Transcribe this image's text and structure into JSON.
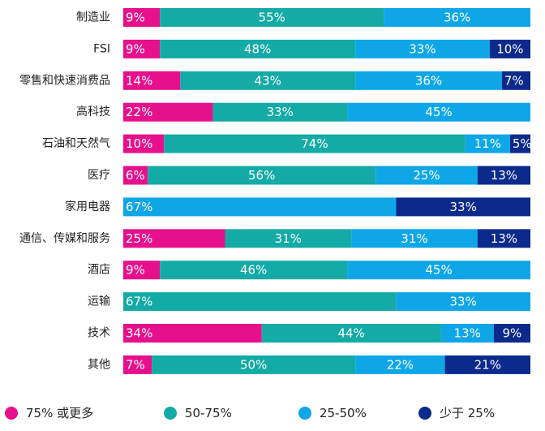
{
  "chart_data": {
    "type": "bar",
    "orientation": "horizontal",
    "stacked": true,
    "percent": true,
    "categories": [
      "制造业",
      "FSI",
      "零售和快速消费品",
      "高科技",
      "石油和天然气",
      "医疗",
      "家用电器",
      "通信、传媒和服务",
      "酒店",
      "运输",
      "技术",
      "其他"
    ],
    "series": [
      {
        "name": "75% 或更多",
        "color": "#e6108c",
        "values": [
          9,
          9,
          14,
          22,
          10,
          6,
          0,
          25,
          9,
          0,
          34,
          7
        ]
      },
      {
        "name": "50-75%",
        "color": "#14aaa6",
        "values": [
          55,
          48,
          43,
          33,
          74,
          56,
          0,
          31,
          46,
          67,
          44,
          50
        ]
      },
      {
        "name": "25-50%",
        "color": "#0ea6e6",
        "values": [
          36,
          33,
          36,
          45,
          11,
          25,
          67,
          31,
          45,
          33,
          13,
          22
        ]
      },
      {
        "name": "少于 25%",
        "color": "#0b2a8c",
        "values": [
          0,
          10,
          7,
          0,
          5,
          13,
          33,
          13,
          0,
          0,
          9,
          21
        ]
      }
    ],
    "value_suffix": "%",
    "xlim": [
      0,
      100
    ],
    "grid": false,
    "legend_position": "bottom"
  }
}
